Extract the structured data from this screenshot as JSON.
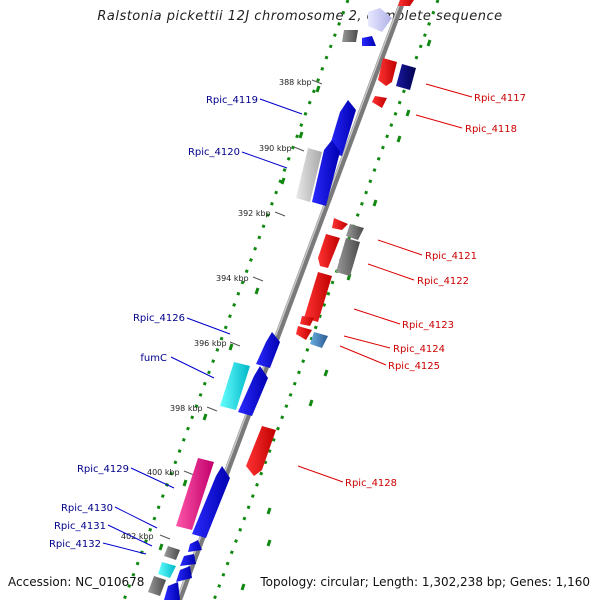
{
  "title": "Ralstonia pickettii 12J chromosome 2, complete sequence",
  "accession": "Accession: NC_010678",
  "topology": "Topology: circular; Length: 1,302,238 bp; Genes: 1,160",
  "kbp_labels": [
    "388 kbp",
    "390 kbp",
    "392 kbp",
    "394 kbp",
    "396 kbp",
    "398 kbp",
    "400 kbp",
    "402 kbp"
  ],
  "left_labels": [
    "Rpic_4119",
    "Rpic_4120",
    "Rpic_4126",
    "fumC",
    "Rpic_4129",
    "Rpic_4130",
    "Rpic_4131",
    "Rpic_4132"
  ],
  "right_labels": [
    "Rpic_4117",
    "Rpic_4118",
    "Rpic_4121",
    "Rpic_4122",
    "Rpic_4123",
    "Rpic_4124",
    "Rpic_4125",
    "Rpic_4128"
  ],
  "colors": {
    "forward": "#0000ee",
    "reverse": "#ee0000",
    "left_label": "#00008b",
    "right_label": "#cc0000",
    "gc_marks": "#118811",
    "backbone": "#888888"
  }
}
